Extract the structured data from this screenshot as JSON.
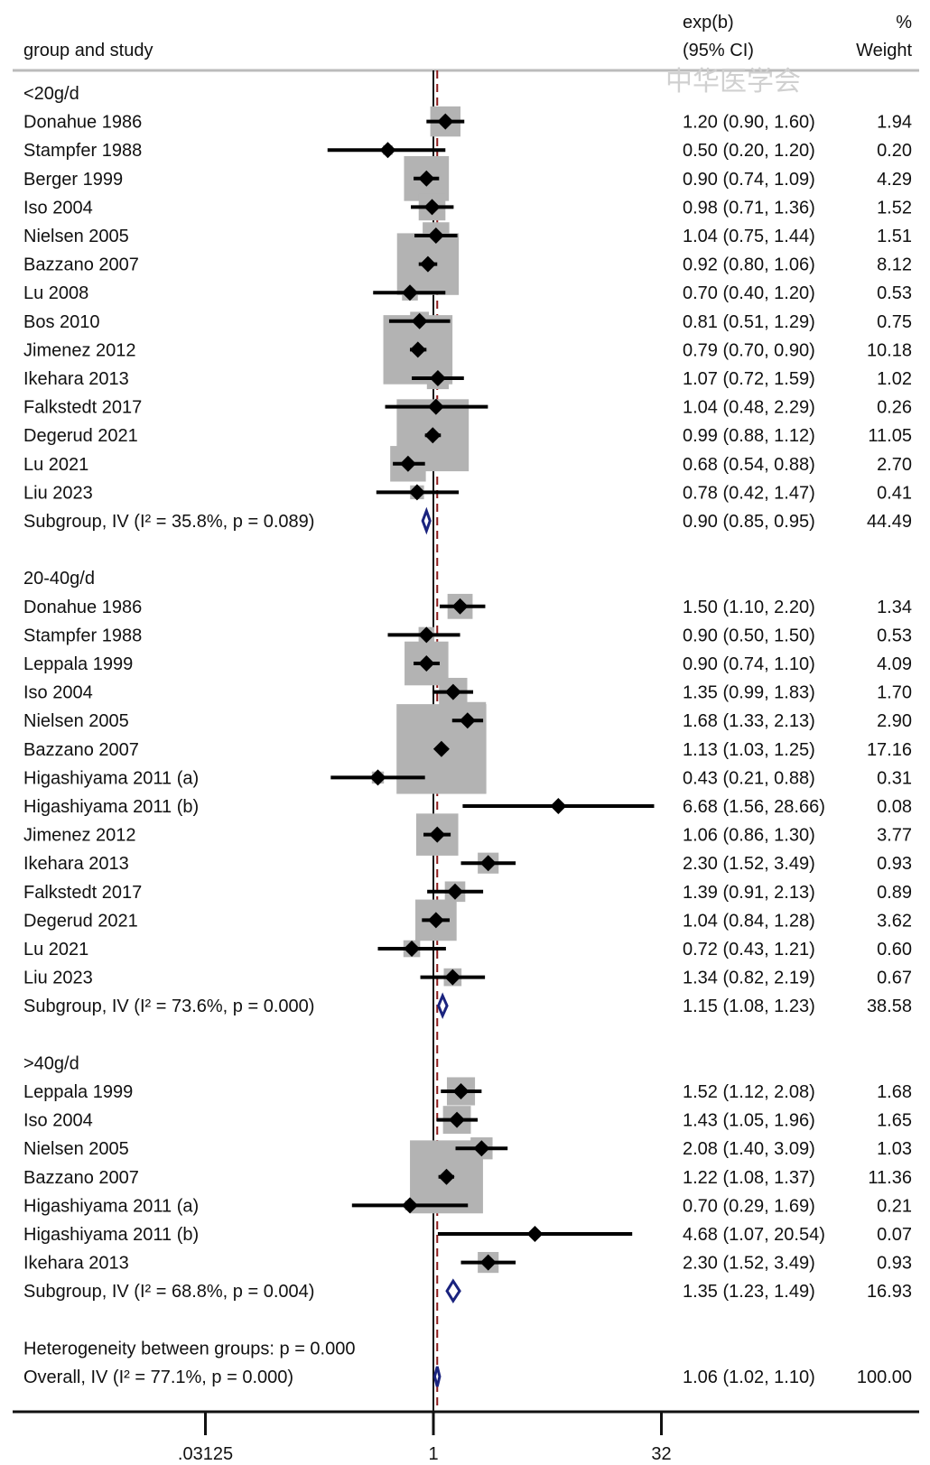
{
  "header": {
    "label_column": "group and study",
    "effect_line1": "exp(b)",
    "effect_line2": "(95% CI)",
    "weight_line1": "%",
    "weight_line2": "Weight"
  },
  "watermark": "中华医学会",
  "chart_data": {
    "type": "forest",
    "x_scale": "log2",
    "x_ticks": [
      {
        "value": 0.03125,
        "label": ".03125"
      },
      {
        "value": 1,
        "label": "1"
      },
      {
        "value": 32,
        "label": "32"
      }
    ],
    "null_line": 1,
    "overall_line": 1.06,
    "groups": [
      {
        "name": "<20g/d",
        "studies": [
          {
            "label": "Donahue 1986",
            "est": 1.2,
            "lo": 0.9,
            "hi": 1.6,
            "ci_text": "1.20 (0.90, 1.60)",
            "weight": 1.94,
            "weight_text": "1.94"
          },
          {
            "label": "Stampfer 1988",
            "est": 0.5,
            "lo": 0.2,
            "hi": 1.2,
            "ci_text": "0.50 (0.20, 1.20)",
            "weight": 0.2,
            "weight_text": "0.20"
          },
          {
            "label": "Berger 1999",
            "est": 0.9,
            "lo": 0.74,
            "hi": 1.09,
            "ci_text": "0.90 (0.74, 1.09)",
            "weight": 4.29,
            "weight_text": "4.29"
          },
          {
            "label": "Iso 2004",
            "est": 0.98,
            "lo": 0.71,
            "hi": 1.36,
            "ci_text": "0.98 (0.71, 1.36)",
            "weight": 1.52,
            "weight_text": "1.52"
          },
          {
            "label": "Nielsen 2005",
            "est": 1.04,
            "lo": 0.75,
            "hi": 1.44,
            "ci_text": "1.04 (0.75, 1.44)",
            "weight": 1.51,
            "weight_text": "1.51"
          },
          {
            "label": "Bazzano 2007",
            "est": 0.92,
            "lo": 0.8,
            "hi": 1.06,
            "ci_text": "0.92 (0.80, 1.06)",
            "weight": 8.12,
            "weight_text": "8.12"
          },
          {
            "label": "Lu 2008",
            "est": 0.7,
            "lo": 0.4,
            "hi": 1.2,
            "ci_text": "0.70 (0.40, 1.20)",
            "weight": 0.53,
            "weight_text": "0.53"
          },
          {
            "label": "Bos 2010",
            "est": 0.81,
            "lo": 0.51,
            "hi": 1.29,
            "ci_text": "0.81 (0.51, 1.29)",
            "weight": 0.75,
            "weight_text": "0.75"
          },
          {
            "label": "Jimenez 2012",
            "est": 0.79,
            "lo": 0.7,
            "hi": 0.9,
            "ci_text": "0.79 (0.70, 0.90)",
            "weight": 10.18,
            "weight_text": "10.18"
          },
          {
            "label": "Ikehara 2013",
            "est": 1.07,
            "lo": 0.72,
            "hi": 1.59,
            "ci_text": "1.07 (0.72, 1.59)",
            "weight": 1.02,
            "weight_text": "1.02"
          },
          {
            "label": "Falkstedt 2017",
            "est": 1.04,
            "lo": 0.48,
            "hi": 2.29,
            "ci_text": "1.04 (0.48, 2.29)",
            "weight": 0.26,
            "weight_text": "0.26"
          },
          {
            "label": "Degerud 2021",
            "est": 0.99,
            "lo": 0.88,
            "hi": 1.12,
            "ci_text": "0.99 (0.88, 1.12)",
            "weight": 11.05,
            "weight_text": "11.05"
          },
          {
            "label": "Lu 2021",
            "est": 0.68,
            "lo": 0.54,
            "hi": 0.88,
            "ci_text": "0.68 (0.54, 0.88)",
            "weight": 2.7,
            "weight_text": "2.70"
          },
          {
            "label": "Liu 2023",
            "est": 0.78,
            "lo": 0.42,
            "hi": 1.47,
            "ci_text": "0.78 (0.42, 1.47)",
            "weight": 0.41,
            "weight_text": "0.41"
          }
        ],
        "subgroup": {
          "label": "Subgroup, IV (I² = 35.8%, p = 0.089)",
          "est": 0.9,
          "lo": 0.85,
          "hi": 0.95,
          "ci_text": "0.90 (0.85, 0.95)",
          "weight_text": "44.49"
        }
      },
      {
        "name": "20-40g/d",
        "studies": [
          {
            "label": "Donahue 1986",
            "est": 1.5,
            "lo": 1.1,
            "hi": 2.2,
            "ci_text": "1.50 (1.10, 2.20)",
            "weight": 1.34,
            "weight_text": "1.34"
          },
          {
            "label": "Stampfer 1988",
            "est": 0.9,
            "lo": 0.5,
            "hi": 1.5,
            "ci_text": "0.90 (0.50, 1.50)",
            "weight": 0.53,
            "weight_text": "0.53"
          },
          {
            "label": "Leppala 1999",
            "est": 0.9,
            "lo": 0.74,
            "hi": 1.1,
            "ci_text": "0.90 (0.74, 1.10)",
            "weight": 4.09,
            "weight_text": "4.09"
          },
          {
            "label": "Iso 2004",
            "est": 1.35,
            "lo": 0.99,
            "hi": 1.83,
            "ci_text": "1.35 (0.99, 1.83)",
            "weight": 1.7,
            "weight_text": "1.70"
          },
          {
            "label": "Nielsen 2005",
            "est": 1.68,
            "lo": 1.33,
            "hi": 2.13,
            "ci_text": "1.68 (1.33, 2.13)",
            "weight": 2.9,
            "weight_text": "2.90"
          },
          {
            "label": "Bazzano 2007",
            "est": 1.13,
            "lo": 1.03,
            "hi": 1.25,
            "ci_text": "1.13 (1.03, 1.25)",
            "weight": 17.16,
            "weight_text": "17.16"
          },
          {
            "label": "Higashiyama 2011 (a)",
            "est": 0.43,
            "lo": 0.21,
            "hi": 0.88,
            "ci_text": "0.43 (0.21, 0.88)",
            "weight": 0.31,
            "weight_text": "0.31"
          },
          {
            "label": "Higashiyama 2011 (b)",
            "est": 6.68,
            "lo": 1.56,
            "hi": 28.66,
            "ci_text": "6.68 (1.56, 28.66)",
            "weight": 0.08,
            "weight_text": "0.08"
          },
          {
            "label": "Jimenez 2012",
            "est": 1.06,
            "lo": 0.86,
            "hi": 1.3,
            "ci_text": "1.06 (0.86, 1.30)",
            "weight": 3.77,
            "weight_text": "3.77"
          },
          {
            "label": "Ikehara 2013",
            "est": 2.3,
            "lo": 1.52,
            "hi": 3.49,
            "ci_text": "2.30 (1.52, 3.49)",
            "weight": 0.93,
            "weight_text": "0.93"
          },
          {
            "label": "Falkstedt 2017",
            "est": 1.39,
            "lo": 0.91,
            "hi": 2.13,
            "ci_text": "1.39 (0.91, 2.13)",
            "weight": 0.89,
            "weight_text": "0.89"
          },
          {
            "label": "Degerud 2021",
            "est": 1.04,
            "lo": 0.84,
            "hi": 1.28,
            "ci_text": "1.04 (0.84, 1.28)",
            "weight": 3.62,
            "weight_text": "3.62"
          },
          {
            "label": "Lu 2021",
            "est": 0.72,
            "lo": 0.43,
            "hi": 1.21,
            "ci_text": "0.72 (0.43, 1.21)",
            "weight": 0.6,
            "weight_text": "0.60"
          },
          {
            "label": "Liu 2023",
            "est": 1.34,
            "lo": 0.82,
            "hi": 2.19,
            "ci_text": "1.34 (0.82, 2.19)",
            "weight": 0.67,
            "weight_text": "0.67"
          }
        ],
        "subgroup": {
          "label": "Subgroup, IV (I² = 73.6%, p = 0.000)",
          "est": 1.15,
          "lo": 1.08,
          "hi": 1.23,
          "ci_text": "1.15 (1.08, 1.23)",
          "weight_text": "38.58"
        }
      },
      {
        "name": ">40g/d",
        "studies": [
          {
            "label": "Leppala 1999",
            "est": 1.52,
            "lo": 1.12,
            "hi": 2.08,
            "ci_text": "1.52 (1.12, 2.08)",
            "weight": 1.68,
            "weight_text": "1.68"
          },
          {
            "label": "Iso 2004",
            "est": 1.43,
            "lo": 1.05,
            "hi": 1.96,
            "ci_text": "1.43 (1.05, 1.96)",
            "weight": 1.65,
            "weight_text": "1.65"
          },
          {
            "label": "Nielsen 2005",
            "est": 2.08,
            "lo": 1.4,
            "hi": 3.09,
            "ci_text": "2.08 (1.40, 3.09)",
            "weight": 1.03,
            "weight_text": "1.03"
          },
          {
            "label": "Bazzano 2007",
            "est": 1.22,
            "lo": 1.08,
            "hi": 1.37,
            "ci_text": "1.22 (1.08, 1.37)",
            "weight": 11.36,
            "weight_text": "11.36"
          },
          {
            "label": "Higashiyama 2011 (a)",
            "est": 0.7,
            "lo": 0.29,
            "hi": 1.69,
            "ci_text": "0.70 (0.29, 1.69)",
            "weight": 0.21,
            "weight_text": "0.21"
          },
          {
            "label": "Higashiyama 2011 (b)",
            "est": 4.68,
            "lo": 1.07,
            "hi": 20.54,
            "ci_text": "4.68 (1.07, 20.54)",
            "weight": 0.07,
            "weight_text": "0.07"
          },
          {
            "label": "Ikehara 2013",
            "est": 2.3,
            "lo": 1.52,
            "hi": 3.49,
            "ci_text": "2.30 (1.52, 3.49)",
            "weight": 0.93,
            "weight_text": "0.93"
          }
        ],
        "subgroup": {
          "label": "Subgroup, IV (I² = 68.8%, p = 0.004)",
          "est": 1.35,
          "lo": 1.23,
          "hi": 1.49,
          "ci_text": "1.35 (1.23, 1.49)",
          "weight_text": "16.93"
        }
      }
    ],
    "heterogeneity": "Heterogeneity between groups: p = 0.000",
    "overall": {
      "label": "Overall, IV (I² = 77.1%, p = 0.000)",
      "est": 1.06,
      "lo": 1.02,
      "hi": 1.1,
      "ci_text": "1.06 (1.02, 1.10)",
      "weight_text": "100.00"
    }
  }
}
